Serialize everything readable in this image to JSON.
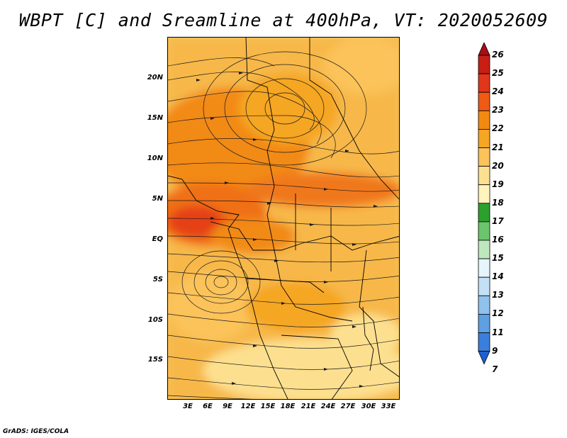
{
  "title": "WBPT [C] and Sreamline at 400hPa, VT: 2020052609",
  "footer": "GrADS: IGES/COLA",
  "map": {
    "lat_labels": [
      "20N",
      "15N",
      "10N",
      "5N",
      "EQ",
      "5S",
      "10S",
      "15S"
    ],
    "lon_labels": [
      "3E",
      "6E",
      "9E",
      "12E",
      "15E",
      "18E",
      "21E",
      "24E",
      "27E",
      "30E",
      "33E"
    ]
  },
  "colorbar": {
    "levels": [
      "26",
      "25",
      "24",
      "23",
      "22",
      "21",
      "20",
      "19",
      "18",
      "17",
      "16",
      "15",
      "14",
      "13",
      "12",
      "11",
      "9",
      "7"
    ],
    "colors": [
      "#a50f15",
      "#c81e14",
      "#e2361a",
      "#f05a14",
      "#f28a12",
      "#f5a623",
      "#fbc35a",
      "#fde08f",
      "#fff4bd",
      "#2ca02c",
      "#6cc56c",
      "#bde8bd",
      "#e6f5fb",
      "#c3e0f5",
      "#8fc2ec",
      "#5fa0e3",
      "#3a7fdc",
      "#1f5fd0"
    ]
  }
}
